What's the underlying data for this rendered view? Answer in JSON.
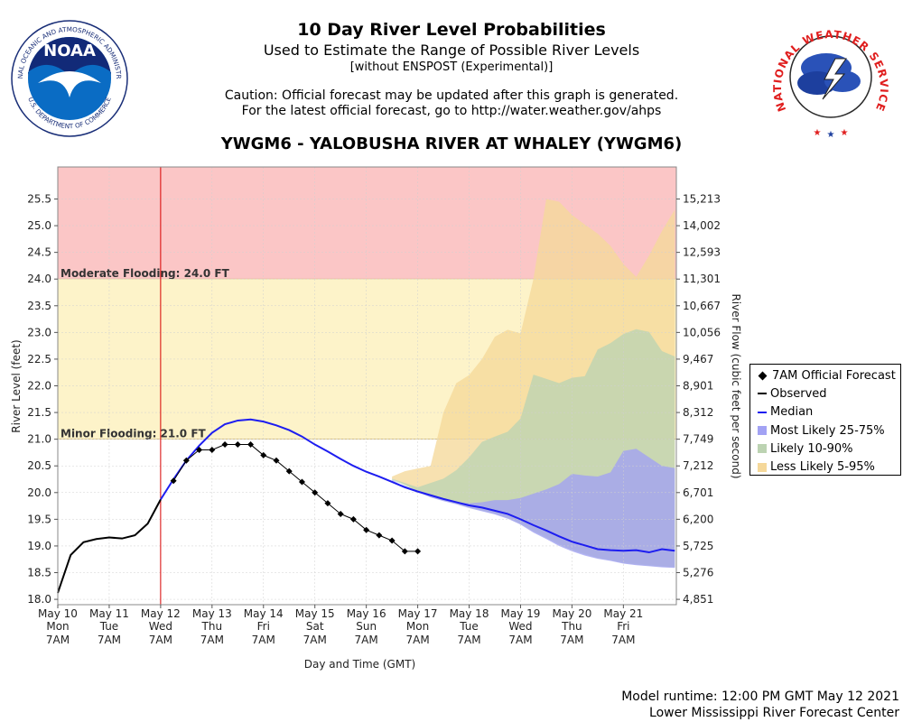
{
  "header": {
    "title": "10 Day River Level Probabilities",
    "subtitle": "Used to Estimate the Range of Possible River Levels",
    "note": "[without ENSPOST (Experimental)]",
    "caution1": "Caution: Official forecast may be updated after this graph is generated.",
    "caution2": "For the latest official forecast, go to http://water.weather.gov/ahps",
    "station": "YWGM6 - YALOBUSHA RIVER AT WHALEY (YWGM6)"
  },
  "logos": {
    "noaa_text": "NOAA",
    "noaa_ring": "NATIONAL OCEANIC AND ATMOSPHERIC ADMINISTRATION",
    "noaa_ring_bottom": "U.S. DEPARTMENT OF COMMERCE",
    "nws_ring": "NATIONAL WEATHER SERVICE"
  },
  "footer": {
    "runtime": "Model runtime: 12:00 PM GMT May 12 2021",
    "center": "Lower Mississippi River Forecast Center"
  },
  "colors": {
    "moderate": "#fbc6c6",
    "minor": "#fdf3c9",
    "b595": "#f5d89a",
    "b1090": "#bcd3b2",
    "b2575": "#a2a2f4",
    "median": "#1d1df0",
    "observed": "#000000",
    "forecast": "#000000",
    "now_line": "#d80000"
  },
  "chart_data": {
    "type": "line",
    "title": "YWGM6 - YALOBUSHA RIVER AT WHALEY (YWGM6)",
    "xlabel": "Day and Time (GMT)",
    "ylabel": "River Level (feet)",
    "y2label": "River Flow (cubic feet per second)",
    "ylim": [
      17.9,
      26.1
    ],
    "xlim": [
      0,
      12.03
    ],
    "yticks": [
      18.0,
      18.5,
      19.0,
      19.5,
      20.0,
      20.5,
      21.0,
      21.5,
      22.0,
      22.5,
      23.0,
      23.5,
      24.0,
      24.5,
      25.0,
      25.5
    ],
    "ytick_labels": [
      "18.0",
      "18.5",
      "19.0",
      "19.5",
      "20.0",
      "20.5",
      "21.0",
      "21.5",
      "22.0",
      "22.5",
      "23.0",
      "23.5",
      "24.0",
      "24.5",
      "25.0",
      "25.5"
    ],
    "flow_ticks": [
      {
        "stage": 18.0,
        "label": "4,851"
      },
      {
        "stage": 18.5,
        "label": "5,276"
      },
      {
        "stage": 19.0,
        "label": "5,725"
      },
      {
        "stage": 19.5,
        "label": "6,200"
      },
      {
        "stage": 20.0,
        "label": "6,701"
      },
      {
        "stage": 20.5,
        "label": "7,212"
      },
      {
        "stage": 21.0,
        "label": "7,749"
      },
      {
        "stage": 21.5,
        "label": "8,312"
      },
      {
        "stage": 22.0,
        "label": "8,901"
      },
      {
        "stage": 22.5,
        "label": "9,467"
      },
      {
        "stage": 23.0,
        "label": "10,056"
      },
      {
        "stage": 23.5,
        "label": "10,667"
      },
      {
        "stage": 24.0,
        "label": "11,301"
      },
      {
        "stage": 24.5,
        "label": "12,593"
      },
      {
        "stage": 25.0,
        "label": "14,002"
      },
      {
        "stage": 25.5,
        "label": "15,213"
      }
    ],
    "xticks": [
      {
        "day": "May 10",
        "dow": "Mon",
        "time": "7AM"
      },
      {
        "day": "May 11",
        "dow": "Tue",
        "time": "7AM"
      },
      {
        "day": "May 12",
        "dow": "Wed",
        "time": "7AM"
      },
      {
        "day": "May 13",
        "dow": "Thu",
        "time": "7AM"
      },
      {
        "day": "May 14",
        "dow": "Fri",
        "time": "7AM"
      },
      {
        "day": "May 15",
        "dow": "Sat",
        "time": "7AM"
      },
      {
        "day": "May 16",
        "dow": "Sun",
        "time": "7AM"
      },
      {
        "day": "May 17",
        "dow": "Mon",
        "time": "7AM"
      },
      {
        "day": "May 18",
        "dow": "Tue",
        "time": "7AM"
      },
      {
        "day": "May 19",
        "dow": "Wed",
        "time": "7AM"
      },
      {
        "day": "May 20",
        "dow": "Thu",
        "time": "7AM"
      },
      {
        "day": "May 21",
        "dow": "Fri",
        "time": "7AM"
      }
    ],
    "flood_bands": [
      {
        "name": "Moderate Flooding",
        "label": "Moderate Flooding: 24.0 FT",
        "from": 24.0,
        "to": 26.1
      },
      {
        "name": "Minor Flooding",
        "label": "Minor Flooding: 21.0 FT",
        "from": 21.0,
        "to": 24.0
      }
    ],
    "now_x": 2.0,
    "observed": {
      "x": [
        0.0,
        0.25,
        0.5,
        0.75,
        1.0,
        1.25,
        1.5,
        1.75,
        2.0
      ],
      "y": [
        18.12,
        18.83,
        19.07,
        19.13,
        19.16,
        19.14,
        19.2,
        19.42,
        19.87
      ]
    },
    "forecast": {
      "x": [
        2.25,
        2.5,
        2.75,
        3.0,
        3.25,
        3.5,
        3.75,
        4.0,
        4.25,
        4.5,
        4.75,
        5.0,
        5.25,
        5.5,
        5.75,
        6.0,
        6.25,
        6.5,
        6.75,
        7.0
      ],
      "y": [
        20.22,
        20.6,
        20.8,
        20.8,
        20.9,
        20.9,
        20.9,
        20.7,
        20.6,
        20.4,
        20.2,
        20.0,
        19.8,
        19.6,
        19.5,
        19.3,
        19.2,
        19.1,
        18.9,
        18.9
      ]
    },
    "median": {
      "x": [
        2.0,
        2.25,
        2.5,
        2.75,
        3.0,
        3.25,
        3.5,
        3.75,
        4.0,
        4.25,
        4.5,
        4.75,
        5.0,
        5.25,
        5.5,
        5.75,
        6.0,
        6.25,
        6.5,
        6.75,
        7.0,
        7.25,
        7.5,
        7.75,
        8.0,
        8.25,
        8.5,
        8.75,
        9.0,
        9.25,
        9.5,
        9.75,
        10.0,
        10.25,
        10.5,
        10.75,
        11.0,
        11.25,
        11.5,
        11.75,
        12.0
      ],
      "y": [
        19.87,
        20.25,
        20.6,
        20.88,
        21.12,
        21.28,
        21.35,
        21.37,
        21.33,
        21.26,
        21.17,
        21.05,
        20.9,
        20.77,
        20.63,
        20.5,
        20.39,
        20.3,
        20.2,
        20.1,
        20.02,
        19.95,
        19.88,
        19.82,
        19.76,
        19.72,
        19.66,
        19.6,
        19.5,
        19.39,
        19.29,
        19.18,
        19.08,
        19.01,
        18.94,
        18.92,
        18.91,
        18.92,
        18.88,
        18.94,
        18.91
      ]
    },
    "band_x": [
      6.5,
      6.75,
      7.0,
      7.25,
      7.5,
      7.75,
      8.0,
      8.25,
      8.5,
      8.75,
      9.0,
      9.25,
      9.5,
      9.75,
      10.0,
      10.25,
      10.5,
      10.75,
      11.0,
      11.25,
      11.5,
      11.75,
      12.0
    ],
    "p05": [
      20.26,
      20.15,
      20.03,
      19.93,
      19.86,
      19.8,
      19.74,
      19.68,
      19.62,
      19.55,
      19.44,
      19.3,
      19.18,
      19.05,
      18.95,
      18.86,
      18.79,
      18.75,
      18.7,
      18.67,
      18.65,
      18.63,
      18.61
    ],
    "p95": [
      20.3,
      20.4,
      20.45,
      20.5,
      21.5,
      22.05,
      22.2,
      22.5,
      22.92,
      23.05,
      22.98,
      24.0,
      25.5,
      25.45,
      25.2,
      25.02,
      24.85,
      24.62,
      24.28,
      24.04,
      24.44,
      24.9,
      25.3
    ],
    "p10": [
      20.24,
      20.14,
      20.02,
      19.92,
      19.85,
      19.79,
      19.72,
      19.66,
      19.6,
      19.52,
      19.41,
      19.27,
      19.15,
      19.02,
      18.92,
      18.84,
      18.77,
      18.73,
      18.68,
      18.65,
      18.63,
      18.61,
      18.6
    ],
    "p90": [
      20.26,
      20.18,
      20.1,
      20.18,
      20.26,
      20.42,
      20.66,
      20.95,
      21.05,
      21.14,
      21.39,
      22.21,
      22.13,
      22.05,
      22.15,
      22.18,
      22.68,
      22.8,
      22.97,
      23.06,
      23.01,
      22.65,
      22.55
    ],
    "p25": [
      20.22,
      20.13,
      20.01,
      19.91,
      19.84,
      19.78,
      19.71,
      19.65,
      19.59,
      19.51,
      19.4,
      19.25,
      19.13,
      19.0,
      18.9,
      18.82,
      18.76,
      18.72,
      18.67,
      18.64,
      18.62,
      18.6,
      18.59
    ],
    "p75": [
      20.24,
      20.12,
      20.02,
      19.94,
      19.87,
      19.82,
      19.8,
      19.82,
      19.86,
      19.86,
      19.9,
      19.98,
      20.06,
      20.16,
      20.35,
      20.32,
      20.3,
      20.38,
      20.78,
      20.82,
      20.66,
      20.5,
      20.46
    ],
    "legend": [
      {
        "key": "forecast",
        "label": "7AM Official Forecast"
      },
      {
        "key": "observed",
        "label": "Observed"
      },
      {
        "key": "median",
        "label": "Median"
      },
      {
        "key": "b2575",
        "label": "Most Likely 25-75%"
      },
      {
        "key": "b1090",
        "label": "Likely 10-90%"
      },
      {
        "key": "b595",
        "label": "Less Likely 5-95%"
      }
    ]
  }
}
